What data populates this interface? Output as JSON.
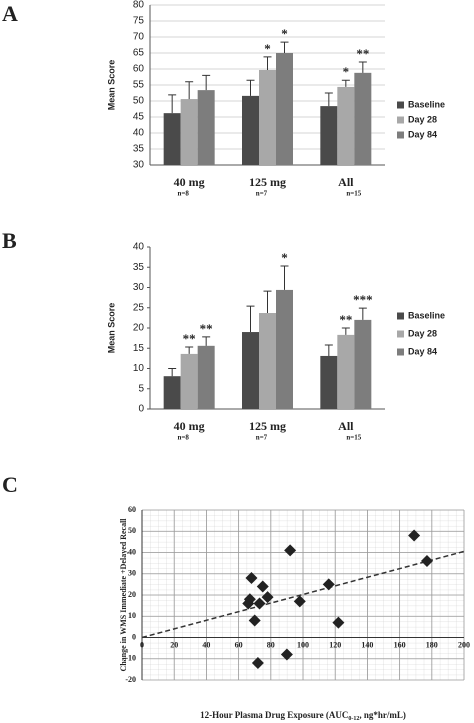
{
  "chart_data": [
    {
      "type": "bar",
      "panel": "A",
      "y_label": "Mean Score",
      "categories": [
        "40 mg",
        "125 mg",
        "All"
      ],
      "category_notes": [
        "n=8",
        "n=7",
        "n=15"
      ],
      "ylim": [
        30,
        80
      ],
      "yticks": [
        30,
        35,
        40,
        45,
        50,
        55,
        60,
        65,
        70,
        75,
        80
      ],
      "grid": true,
      "series": [
        {
          "name": "Baseline",
          "color": "#4a4a4a",
          "values": [
            46.2,
            51.6,
            48.4
          ],
          "errors": [
            5.7,
            4.9,
            4.1
          ],
          "annotations": [
            null,
            null,
            null
          ]
        },
        {
          "name": "Day 28",
          "color": "#a8a8a8",
          "values": [
            50.6,
            59.7,
            54.4
          ],
          "errors": [
            5.4,
            4.1,
            2.1
          ],
          "annotations": [
            null,
            "*",
            "*"
          ]
        },
        {
          "name": "Day 84",
          "color": "#7d7d7d",
          "values": [
            53.4,
            65,
            58.8
          ],
          "errors": [
            4.6,
            3.4,
            3.4
          ],
          "annotations": [
            null,
            "*",
            "**"
          ]
        }
      ]
    },
    {
      "type": "bar",
      "panel": "B",
      "y_label": "Mean Score",
      "categories": [
        "40 mg",
        "125 mg",
        "All"
      ],
      "category_notes": [
        "n=8",
        "n=7",
        "n=15"
      ],
      "ylim": [
        0,
        40
      ],
      "yticks": [
        0,
        5,
        10,
        15,
        20,
        25,
        30,
        35,
        40
      ],
      "grid": false,
      "series": [
        {
          "name": "Baseline",
          "color": "#4a4a4a",
          "values": [
            8.1,
            19,
            13.1
          ],
          "errors": [
            1.9,
            6.4,
            2.7
          ],
          "annotations": [
            null,
            null,
            null
          ]
        },
        {
          "name": "Day 28",
          "color": "#a8a8a8",
          "values": [
            13.6,
            23.7,
            18.3
          ],
          "errors": [
            1.7,
            5.4,
            1.7
          ],
          "annotations": [
            "**",
            null,
            "**"
          ]
        },
        {
          "name": "Day 84",
          "color": "#7d7d7d",
          "values": [
            15.6,
            29.4,
            22
          ],
          "errors": [
            2.2,
            5.9,
            2.9
          ],
          "annotations": [
            "**",
            "*",
            "***"
          ]
        }
      ]
    },
    {
      "type": "scatter",
      "panel": "C",
      "y_label": "Change in WMS Immediate +Delayed Recall",
      "x_label": "12-Hour Plasma Drug Exposure (AUC",
      "x_label_sub": "0-12",
      "x_label_end": ", ng*hr/mL)",
      "xlim": [
        0,
        200
      ],
      "xticks": [
        0,
        20,
        40,
        60,
        80,
        100,
        120,
        140,
        160,
        180,
        200
      ],
      "ylim": [
        -20,
        60
      ],
      "yticks": [
        -20,
        -10,
        0,
        10,
        20,
        30,
        40,
        50,
        60
      ],
      "grid": true,
      "color": "#222222",
      "x": [
        66,
        67,
        68,
        70,
        72,
        73,
        75,
        78,
        90,
        92,
        98,
        116,
        122,
        169,
        177
      ],
      "values": [
        16,
        18,
        28,
        8,
        -12,
        16,
        24,
        19,
        -8,
        41,
        17,
        25,
        7,
        48,
        36
      ],
      "trendline": {
        "x": [
          0,
          200
        ],
        "y": [
          0,
          40.5
        ]
      }
    }
  ]
}
